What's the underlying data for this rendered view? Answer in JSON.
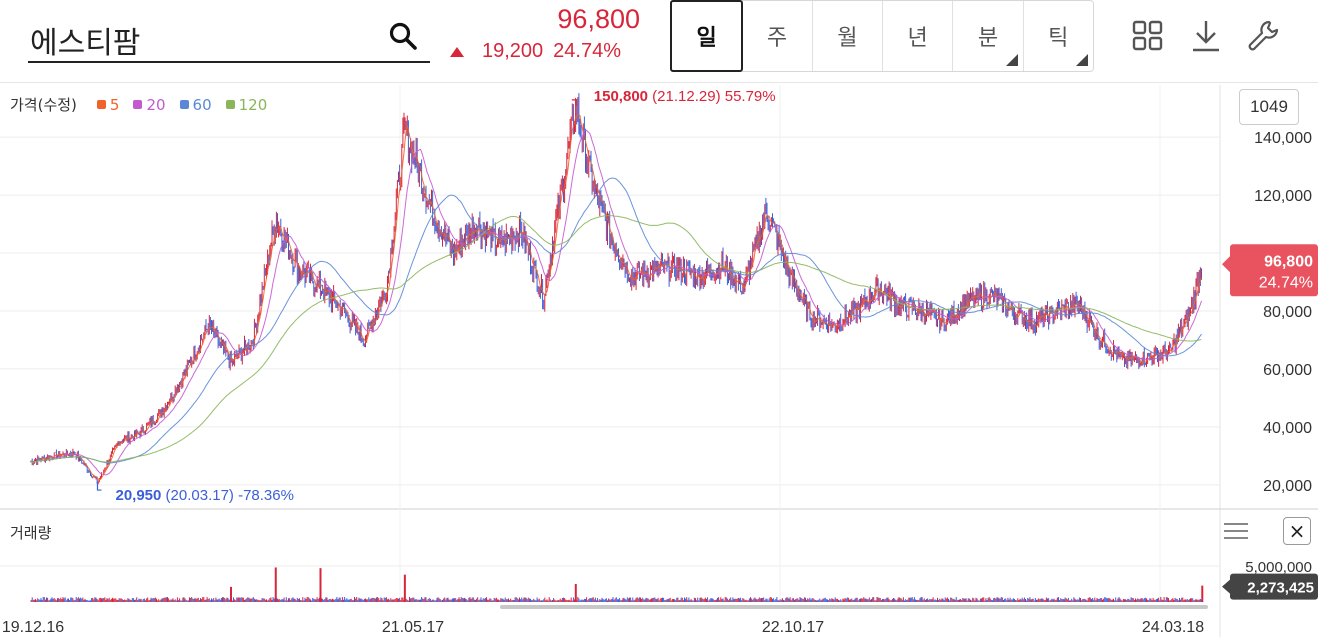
{
  "header": {
    "stock_name": "에스티팜",
    "price": "96,800",
    "change": "19,200",
    "change_pct": "24.74%",
    "tabs": [
      {
        "label": "일",
        "active": true
      },
      {
        "label": "주"
      },
      {
        "label": "월"
      },
      {
        "label": "년"
      },
      {
        "label": "분",
        "has_menu": true
      },
      {
        "label": "틱",
        "has_menu": true
      }
    ],
    "icons": [
      "grid-icon",
      "download-icon",
      "wrench-icon",
      "search-icon"
    ]
  },
  "legend": {
    "label": "가격(수정)",
    "items": [
      {
        "label": "5",
        "color": "#f0622a"
      },
      {
        "label": "20",
        "color": "#c55ad0"
      },
      {
        "label": "60",
        "color": "#5a88d6"
      },
      {
        "label": "120",
        "color": "#8ab55a"
      }
    ]
  },
  "count_badge": "1049",
  "volume": {
    "title": "거래량",
    "axis_label": "5,000,000",
    "current": "2,273,425",
    "close_label": "×"
  },
  "colors": {
    "up": "#d9253a",
    "down": "#3b5fd8",
    "accent": "#e9535f"
  },
  "chart_data": {
    "type": "line",
    "ohlc_style": "candlestick",
    "x_ticks": [
      "19.12.16",
      "21.05.17",
      "22.10.17",
      "24.03.18"
    ],
    "y_ticks": [
      "20,000",
      "40,000",
      "60,000",
      "80,000",
      "120,000",
      "140,000"
    ],
    "ylim": [
      12000,
      158000
    ],
    "current_label": {
      "price": "96,800",
      "pct": "24.74%"
    },
    "high_annotation": {
      "price": "150,800",
      "date": "(21.12.29)",
      "pct": "55.79%"
    },
    "low_annotation": {
      "price": "20,950",
      "date": "(20.03.17)",
      "pct": "-78.36%"
    },
    "close_series": [
      [
        "19.12.16",
        28000
      ],
      [
        "20.01.15",
        30000
      ],
      [
        "20.02.15",
        31000
      ],
      [
        "20.03.17",
        20950
      ],
      [
        "20.04.15",
        35000
      ],
      [
        "20.05.15",
        38000
      ],
      [
        "20.06.15",
        46000
      ],
      [
        "20.07.15",
        59000
      ],
      [
        "20.08.15",
        75000
      ],
      [
        "20.09.15",
        62000
      ],
      [
        "20.10.15",
        70000
      ],
      [
        "20.11.15",
        112000
      ],
      [
        "20.12.15",
        95000
      ],
      [
        "21.01.15",
        88000
      ],
      [
        "21.02.15",
        80000
      ],
      [
        "21.03.15",
        70000
      ],
      [
        "21.04.15",
        88000
      ],
      [
        "21.05.10",
        143000
      ],
      [
        "21.06.15",
        115000
      ],
      [
        "21.07.15",
        100000
      ],
      [
        "21.08.15",
        110000
      ],
      [
        "21.09.15",
        103000
      ],
      [
        "21.10.15",
        108000
      ],
      [
        "21.11.15",
        85000
      ],
      [
        "21.12.29",
        150800
      ],
      [
        "22.01.20",
        125000
      ],
      [
        "22.02.15",
        105000
      ],
      [
        "22.03.15",
        92000
      ],
      [
        "22.04.15",
        94000
      ],
      [
        "22.05.15",
        95000
      ],
      [
        "22.06.15",
        92000
      ],
      [
        "22.07.15",
        96000
      ],
      [
        "22.08.15",
        88000
      ],
      [
        "22.09.15",
        115000
      ],
      [
        "22.10.17",
        92000
      ],
      [
        "22.11.15",
        78000
      ],
      [
        "22.12.15",
        75000
      ],
      [
        "23.01.15",
        80000
      ],
      [
        "23.02.15",
        88000
      ],
      [
        "23.03.15",
        82000
      ],
      [
        "23.04.15",
        80000
      ],
      [
        "23.05.15",
        76000
      ],
      [
        "23.06.15",
        83000
      ],
      [
        "23.07.15",
        86000
      ],
      [
        "23.08.15",
        80000
      ],
      [
        "23.09.15",
        76000
      ],
      [
        "23.10.15",
        80000
      ],
      [
        "23.11.15",
        82000
      ],
      [
        "23.12.15",
        70000
      ],
      [
        "24.01.15",
        63000
      ],
      [
        "24.02.15",
        64000
      ],
      [
        "24.03.18",
        66000
      ],
      [
        "24.04.15",
        80000
      ],
      [
        "24.05.01",
        96800
      ]
    ],
    "ma_series": [
      {
        "name": "5",
        "color": "#f0622a"
      },
      {
        "name": "20",
        "color": "#c55ad0"
      },
      {
        "name": "60",
        "color": "#5a88d6"
      },
      {
        "name": "120",
        "color": "#8ab55a"
      }
    ],
    "volume_ylim": [
      0,
      7500000
    ],
    "volume_spikes": [
      [
        "20.11.15",
        4800000
      ],
      [
        "21.01.15",
        4700000
      ],
      [
        "21.05.10",
        3800000
      ],
      [
        "20.09.15",
        2100000
      ],
      [
        "21.12.29",
        2500000
      ],
      [
        "24.05.01",
        2273425
      ]
    ]
  }
}
